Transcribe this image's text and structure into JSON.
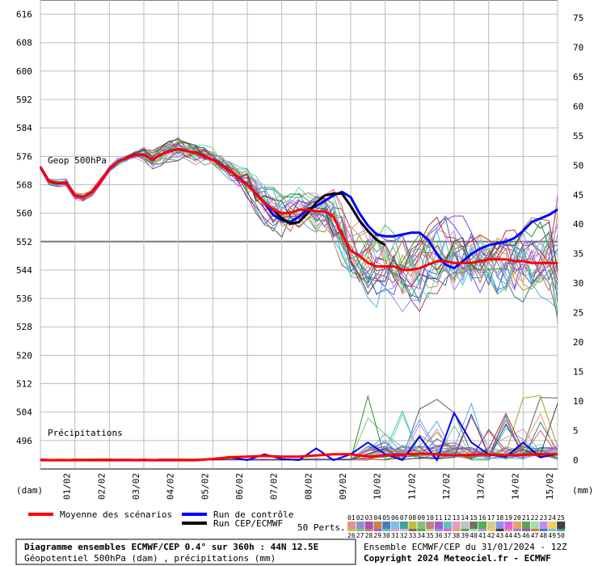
{
  "chart_data": {
    "type": "line",
    "title": "Diagramme ensembles ECMWF/CEP 0.4° sur 360h : 44N 12.5E",
    "subtitle": "Géopotentiel 500hPa (dam) , précipitations (mm)",
    "left_axis": {
      "unit": "(dam)",
      "ylim": [
        488,
        620
      ],
      "ticks": [
        "616",
        "608",
        "600",
        "592",
        "584",
        "576",
        "568",
        "560",
        "552",
        "544",
        "536",
        "528",
        "520",
        "512",
        "504",
        "496"
      ],
      "reference_line": 552
    },
    "right_axis": {
      "unit": "(mm)",
      "ylim": [
        -1.5,
        78
      ],
      "ticks": [
        "75",
        "70",
        "65",
        "60",
        "55",
        "50",
        "45",
        "40",
        "35",
        "30",
        "25",
        "20",
        "15",
        "10",
        "5",
        "0"
      ]
    },
    "x_categories": [
      "01/02",
      "02/02",
      "03/02",
      "04/02",
      "05/02",
      "06/02",
      "07/02",
      "08/02",
      "09/02",
      "10/02",
      "11/02",
      "12/02",
      "13/02",
      "14/02",
      "15/02"
    ],
    "x_range_days": [
      0,
      15
    ],
    "annotations": {
      "geop": "Geop 500hPa",
      "precip": "Précipitations"
    },
    "series": [
      {
        "name": "Moyenne des scénarios",
        "color": "#ff0000",
        "x": [
          0,
          0.25,
          0.5,
          0.75,
          1,
          1.25,
          1.5,
          1.75,
          2,
          2.25,
          2.5,
          2.75,
          3,
          3.25,
          3.5,
          3.75,
          4,
          4.25,
          4.5,
          4.75,
          5,
          5.25,
          5.5,
          5.75,
          6,
          6.25,
          6.5,
          6.75,
          7,
          7.25,
          7.5,
          7.75,
          8,
          8.25,
          8.5,
          8.75,
          9,
          9.25,
          9.5,
          9.75,
          10,
          10.25,
          10.5,
          10.75,
          11,
          11.25,
          11.5,
          11.75,
          12,
          12.25,
          12.5,
          12.75,
          13,
          13.25,
          13.5,
          13.75,
          14,
          14.25,
          14.5,
          14.75,
          15
        ],
        "values": [
          573,
          569,
          568.5,
          568.5,
          565,
          564.5,
          566,
          569,
          572.5,
          574.5,
          575.5,
          576.5,
          576.5,
          575,
          576.5,
          577.5,
          578,
          577.5,
          577,
          576,
          575,
          573.5,
          572,
          570,
          568,
          565.5,
          563,
          561,
          560,
          560,
          561,
          561,
          560.5,
          560.5,
          559,
          554,
          549.5,
          548,
          546,
          545,
          545,
          545,
          544,
          544,
          544.5,
          545.5,
          546.5,
          546.5,
          546,
          546,
          546,
          546.5,
          547,
          547,
          547,
          546.5,
          546.5,
          546,
          546,
          546,
          546
        ]
      },
      {
        "name": "Run de contrôle",
        "color": "#0000ff",
        "x": [
          0,
          0.25,
          0.5,
          0.75,
          1,
          1.25,
          1.5,
          1.75,
          2,
          2.25,
          2.5,
          2.75,
          3,
          3.25,
          3.5,
          3.75,
          4,
          4.25,
          4.5,
          4.75,
          5,
          5.25,
          5.5,
          5.75,
          6,
          6.25,
          6.5,
          6.75,
          7,
          7.25,
          7.5,
          7.75,
          8,
          8.25,
          8.5,
          8.75,
          9,
          9.25,
          9.5,
          9.75,
          10,
          10.25,
          10.5,
          10.75,
          11,
          11.25,
          11.5,
          11.75,
          12,
          12.25,
          12.5,
          12.75,
          13,
          13.25,
          13.5,
          13.75,
          14,
          14.25,
          14.5,
          14.75,
          15
        ],
        "values": [
          573,
          569,
          568.5,
          568.5,
          565,
          564.5,
          566,
          569,
          572.5,
          574.5,
          575.5,
          576.5,
          576.5,
          575,
          576.5,
          577.5,
          578,
          577.5,
          577,
          576,
          575,
          573.5,
          572,
          570,
          568,
          565.5,
          563,
          559.5,
          558,
          557.5,
          559,
          561,
          562,
          563.5,
          565,
          566,
          564.5,
          560,
          556.5,
          554,
          553.5,
          553.5,
          554,
          554.5,
          554.5,
          552.5,
          548.5,
          545.5,
          544.5,
          546.5,
          548.5,
          550,
          551,
          551.5,
          552,
          553,
          555,
          557.5,
          558.5,
          559.5,
          561
        ]
      },
      {
        "name": "Run CEP/ECMWF",
        "color": "#000000",
        "x": [
          0,
          0.25,
          0.5,
          0.75,
          1,
          1.25,
          1.5,
          1.75,
          2,
          2.25,
          2.5,
          2.75,
          3,
          3.25,
          3.5,
          3.75,
          4,
          4.25,
          4.5,
          4.75,
          5,
          5.25,
          5.5,
          5.75,
          6,
          6.25,
          6.5,
          6.75,
          7,
          7.25,
          7.5,
          7.75,
          8,
          8.25,
          8.5,
          8.75,
          9,
          9.25,
          9.5,
          9.75,
          10
        ],
        "values": [
          573,
          569,
          568.5,
          568.5,
          565,
          564.5,
          566,
          569,
          572.5,
          574.5,
          575.5,
          576.5,
          576.5,
          575,
          576.5,
          577.5,
          578,
          577.5,
          577,
          576,
          575,
          573.5,
          572,
          570,
          568,
          565.5,
          563,
          561,
          558.5,
          557,
          557.5,
          560,
          563,
          565,
          565.5,
          565.5,
          562,
          558,
          555,
          552.5,
          551
        ]
      }
    ],
    "ensemble_members": [
      {
        "name": "Pert 01",
        "color": "#e06060",
        "end": 545
      },
      {
        "name": "Pert 02",
        "color": "#60a0e0",
        "end": 538
      },
      {
        "name": "Pert 03",
        "color": "#8040c0",
        "end": 552
      },
      {
        "name": "Pert 04",
        "color": "#40c060",
        "end": 532
      },
      {
        "name": "Pert 05",
        "color": "#c0a040",
        "end": 560
      },
      {
        "name": "Pert 06",
        "color": "#40c0c0",
        "end": 548
      },
      {
        "name": "Pert 07",
        "color": "#a04080",
        "end": 541
      },
      {
        "name": "Pert 08",
        "color": "#606060",
        "end": 535
      },
      {
        "name": "Pert 09",
        "color": "#80c080",
        "end": 556
      },
      {
        "name": "Pert 10",
        "color": "#e090c0",
        "end": 529
      },
      {
        "name": "Pert 11",
        "color": "#4060c0",
        "end": 550
      },
      {
        "name": "Pert 12",
        "color": "#c06040",
        "end": 543
      },
      {
        "name": "Pert 13",
        "color": "#20a0a0",
        "end": 537
      },
      {
        "name": "Pert 14",
        "color": "#a0a020",
        "end": 562
      },
      {
        "name": "Pert 15",
        "color": "#7050e0",
        "end": 546
      },
      {
        "name": "Pert 16",
        "color": "#50b0f0",
        "end": 533
      },
      {
        "name": "Pert 17",
        "color": "#309030",
        "end": 551
      },
      {
        "name": "Pert 18",
        "color": "#b03030",
        "end": 540
      },
      {
        "name": "Pert 19",
        "color": "#c080ff",
        "end": 557
      },
      {
        "name": "Pert 20",
        "color": "#308080",
        "end": 531
      },
      {
        "name": "Pert 21",
        "color": "#f0a060",
        "end": 547
      },
      {
        "name": "Pert 22",
        "color": "#60e0a0",
        "end": 539
      },
      {
        "name": "Pert 23",
        "color": "#9090f0",
        "end": 554
      },
      {
        "name": "Pert 24",
        "color": "#d040d0",
        "end": 565
      },
      {
        "name": "Pert 25",
        "color": "#404040",
        "end": 544
      }
    ],
    "precip_mean_mm": [
      0,
      0,
      0,
      0,
      0,
      0,
      0,
      0,
      0,
      0,
      0.2,
      0.5,
      0.6,
      0.7,
      0.6,
      0.6,
      0.8,
      1.0,
      1.0,
      0.6,
      0.8,
      0.9,
      1.1,
      1.0,
      0.8,
      0.9,
      1.0,
      0.8,
      0.9,
      1.0,
      1.0
    ],
    "precip_control_mm": [
      0,
      0,
      0,
      0,
      0,
      0,
      0,
      0,
      0,
      0,
      0.1,
      0.5,
      0,
      1,
      0.2,
      0,
      2,
      0,
      1,
      3,
      1,
      0,
      4,
      0,
      8,
      3,
      1,
      0.5,
      3,
      0.5,
      1.0
    ],
    "legend": {
      "mean": "Moyenne des scénarios",
      "control": "Run de contrôle",
      "oper": "Run CEP/ECMWF",
      "perts": "50 Perts.",
      "pert_row1": [
        "01",
        "02",
        "03",
        "04",
        "05",
        "06",
        "07",
        "08",
        "09",
        "10",
        "11",
        "12",
        "13",
        "14",
        "15",
        "16",
        "17",
        "18",
        "19",
        "20",
        "21",
        "22",
        "23",
        "24",
        "25"
      ],
      "pert_row2": [
        "26",
        "27",
        "28",
        "29",
        "30",
        "31",
        "32",
        "33",
        "34",
        "35",
        "36",
        "37",
        "38",
        "39",
        "40",
        "41",
        "42",
        "43",
        "44",
        "45",
        "46",
        "47",
        "48",
        "49",
        "50"
      ]
    },
    "credits": {
      "line1": "Ensemble ECMWF/CEP du 31/01/2024 - 12Z",
      "line2": "Copyright 2024 Meteociel.fr - ECMWF"
    }
  },
  "colors": {
    "grid": "#bbbbbb",
    "swatches": [
      "#e89090",
      "#9090d0",
      "#b050b0",
      "#d08040",
      "#4080c0",
      "#80c0e0",
      "#40a0a0",
      "#c0c040",
      "#80c080",
      "#c08080",
      "#a060d0",
      "#60c0c0",
      "#e0a0c0",
      "#c0c0c0",
      "#707070",
      "#50b050",
      "#d0d080",
      "#9090f0",
      "#e060e0",
      "#f0a060",
      "#60a060",
      "#a0e0a0",
      "#c090f0",
      "#f0d060",
      "#404040"
    ]
  }
}
